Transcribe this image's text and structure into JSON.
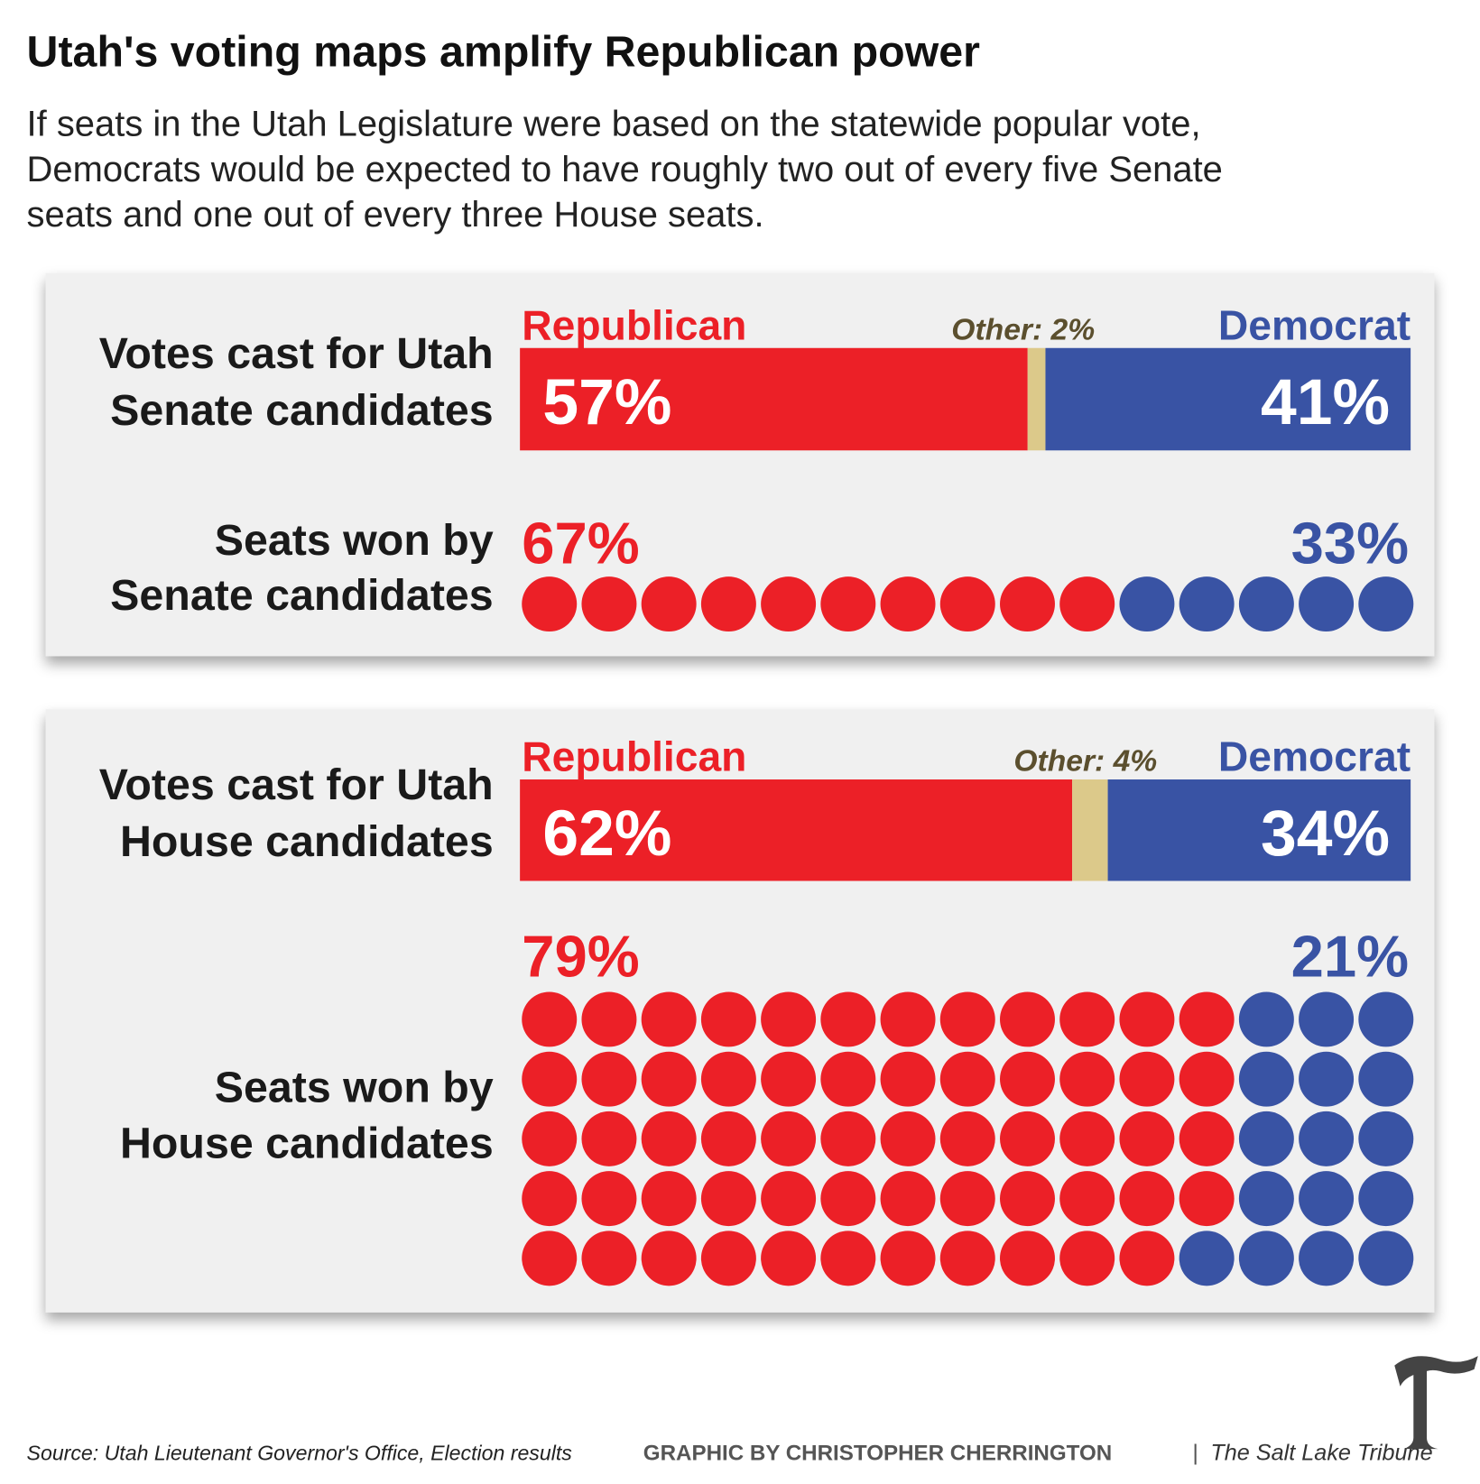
{
  "title": "Utah's voting maps amplify Republican power",
  "subtitle": [
    "If seats in the Utah Legislature were based on the statewide popular vote,",
    "Democrats would be expected to have roughly two out of every five Senate",
    "seats and one out of every three House seats."
  ],
  "source": "Source: Utah Lieutenant Governor's Office, Election results",
  "credit": "GRAPHIC BY CHRISTOPHER CHERRINGTON",
  "separator": "|",
  "publication": "The Salt Lake Tribune",
  "chart_data": [
    {
      "type": "stacked-bar",
      "label": [
        "Votes cast for Utah",
        "Senate candidates"
      ],
      "xlim": [
        0,
        100
      ],
      "series": [
        {
          "name": "Republican",
          "color": "#ec2027",
          "values": [
            57
          ],
          "value_labels": [
            "57%"
          ]
        },
        {
          "color": "#dcc98a",
          "label_color": "#5b4f2e",
          "values": [
            2
          ],
          "value_labels": [
            "Other: 2%"
          ]
        },
        {
          "name": "Democrat",
          "color": "#3953a4",
          "values": [
            41
          ],
          "value_labels": [
            "41%"
          ]
        }
      ]
    },
    {
      "type": "waffle",
      "label": [
        "Seats won by",
        "Senate candidates"
      ],
      "rows": 1,
      "series": [
        {
          "color": "#ec2027",
          "values": [
            67
          ],
          "value_labels": [
            "67%"
          ],
          "dots": 10
        },
        {
          "color": "#3953a4",
          "values": [
            33
          ],
          "value_labels": [
            "33%"
          ],
          "dots": 5
        }
      ]
    },
    {
      "type": "stacked-bar",
      "label": [
        "Votes cast for Utah",
        "House candidates"
      ],
      "xlim": [
        0,
        100
      ],
      "series": [
        {
          "name": "Republican",
          "color": "#ec2027",
          "values": [
            62
          ],
          "value_labels": [
            "62%"
          ]
        },
        {
          "color": "#dcc98a",
          "label_color": "#5b4f2e",
          "values": [
            4
          ],
          "value_labels": [
            "Other: 4%"
          ]
        },
        {
          "name": "Democrat",
          "color": "#3953a4",
          "values": [
            34
          ],
          "value_labels": [
            "34%"
          ]
        }
      ]
    },
    {
      "type": "waffle",
      "label": [
        "Seats won by",
        "House candidates"
      ],
      "rows": 5,
      "series": [
        {
          "color": "#ec2027",
          "values": [
            79
          ],
          "value_labels": [
            "79%"
          ],
          "dots": 59
        },
        {
          "color": "#3953a4",
          "values": [
            21
          ],
          "value_labels": [
            "21%"
          ],
          "dots": 16
        }
      ]
    }
  ]
}
